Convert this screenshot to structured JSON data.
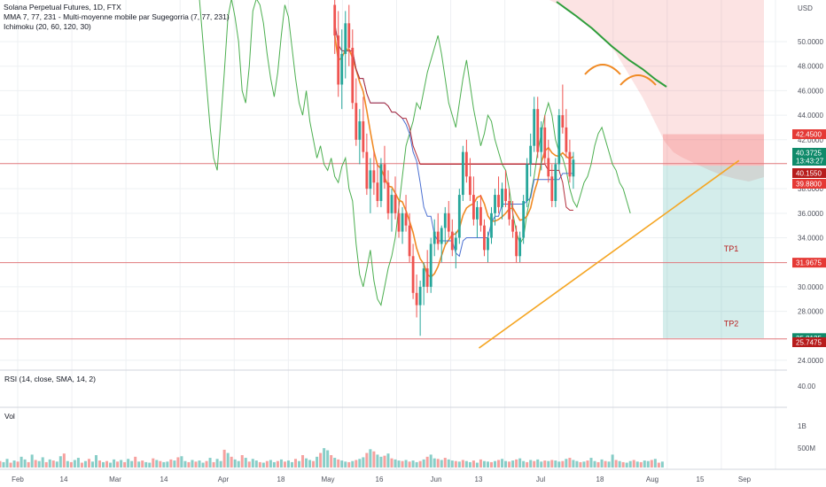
{
  "header": {
    "symbol_line": "Solana Perpetual Futures, 1D, FTX",
    "indicators": [
      "MMA 7, 77, 231 - Multi-moyenne mobile par Sugegorria (7, 77, 231)",
      "Ichimoku (20, 60, 120, 30)"
    ],
    "rsi_label": "RSI (14, close, SMA, 14, 2)",
    "vol_label": "Vol"
  },
  "colors": {
    "up": "#26a69a",
    "down": "#ef5350",
    "grid": "#eef0f3",
    "h_line": "#e0787c",
    "trendline": "#f5a623",
    "ma_orange": "#f08a24",
    "ma_green": "#2e9d3a",
    "ichimoku_conversion": "#4a6fd1",
    "ichimoku_base": "#b22d3a",
    "ichimoku_lagging": "#4caf50",
    "cloud_red": "rgba(239,83,80,0.16)",
    "tp_zone": "rgba(38,166,154,0.20)",
    "sl_zone": "rgba(239,83,80,0.26)",
    "axis_text": "#50535e",
    "label_red": "#e53935",
    "label_dark_red": "#b71c1c",
    "label_green": "#0f8a6a"
  },
  "chart_data": {
    "type": "candlestick",
    "currency_label": "USD",
    "price_axis_ticks": [
      "50.0000",
      "48.0000",
      "46.0000",
      "44.0000",
      "42.0000",
      "38.0000",
      "36.0000",
      "34.0000",
      "30.0000",
      "28.0000",
      "24.0000"
    ],
    "price_axis_tick_values": [
      50,
      48,
      46,
      44,
      42,
      38,
      36,
      34,
      30,
      28,
      24
    ],
    "price_range": [
      23.2,
      53.4
    ],
    "rsi_axis_ticks": [
      "40.00"
    ],
    "volume_axis_ticks": [
      "1B",
      "500M"
    ],
    "time_axis_labels": [
      "Feb",
      "14",
      "Mar",
      "14",
      "Apr",
      "18",
      "May",
      "16",
      "Jun",
      "13",
      "Jul",
      "18",
      "Aug",
      "15",
      "Sep"
    ],
    "price_labels": [
      {
        "text": "42.4500",
        "price": 42.45,
        "style": "red"
      },
      {
        "text": "40.3725",
        "price": 40.3725,
        "style": "green",
        "subtext": "13:43:27"
      },
      {
        "text": "40.1550",
        "price": 40.155,
        "style": "dark_red"
      },
      {
        "text": "39.8800",
        "price": 39.88,
        "style": "red"
      },
      {
        "text": "31.9675",
        "price": 31.9675,
        "style": "red"
      },
      {
        "text": "25.8125",
        "price": 25.8125,
        "style": "green"
      },
      {
        "text": "25.7475",
        "price": 25.7475,
        "style": "dark_red"
      }
    ],
    "horizontal_levels": [
      40.05,
      31.97,
      25.75
    ],
    "targets": [
      {
        "label": "TP1",
        "price": 32.6
      },
      {
        "label": "TP2",
        "price": 26.5
      }
    ],
    "trendline": {
      "from": {
        "date": "2022-06-13",
        "price": 25.0
      },
      "to": {
        "date": "2022-08-25",
        "price": 40.3
      }
    },
    "stop_zone_top": 42.45,
    "entry_price": 39.88,
    "take_profit_floor": 25.81,
    "date_range": [
      "2022-01-27",
      "2022-09-05"
    ],
    "candles_start": "2022-05-01",
    "candles": [
      [
        53.0,
        54.0,
        49.0,
        50.5
      ],
      [
        50.5,
        52.5,
        45.5,
        46.5
      ],
      [
        46.5,
        51.0,
        44.5,
        49.0
      ],
      [
        49.0,
        52.5,
        47.0,
        51.5
      ],
      [
        51.5,
        53.0,
        48.0,
        49.5
      ],
      [
        49.5,
        51.0,
        44.5,
        45.0
      ],
      [
        45.0,
        47.0,
        41.5,
        42.0
      ],
      [
        42.0,
        44.5,
        40.0,
        43.5
      ],
      [
        43.5,
        45.5,
        40.5,
        41.0
      ],
      [
        41.0,
        42.5,
        37.5,
        38.0
      ],
      [
        38.0,
        40.5,
        36.0,
        39.5
      ],
      [
        39.5,
        41.0,
        37.5,
        38.5
      ],
      [
        38.5,
        40.0,
        36.5,
        37.0
      ],
      [
        37.0,
        40.5,
        36.5,
        40.0
      ],
      [
        40.0,
        41.5,
        38.0,
        38.5
      ],
      [
        38.5,
        39.5,
        35.5,
        36.0
      ],
      [
        36.0,
        38.0,
        34.5,
        37.5
      ],
      [
        37.5,
        39.0,
        35.5,
        36.0
      ],
      [
        36.0,
        37.0,
        34.0,
        34.5
      ],
      [
        34.5,
        36.5,
        33.5,
        36.0
      ],
      [
        36.0,
        37.5,
        34.5,
        35.0
      ],
      [
        35.0,
        36.0,
        32.0,
        32.5
      ],
      [
        32.5,
        33.5,
        29.0,
        29.5
      ],
      [
        29.5,
        31.0,
        27.5,
        28.5
      ],
      [
        28.5,
        30.5,
        26.0,
        30.0
      ],
      [
        30.0,
        32.0,
        28.5,
        31.5
      ],
      [
        31.5,
        33.0,
        29.5,
        30.0
      ],
      [
        30.0,
        34.0,
        29.5,
        33.5
      ],
      [
        33.5,
        35.5,
        32.5,
        34.5
      ],
      [
        34.5,
        36.0,
        33.0,
        33.5
      ],
      [
        33.5,
        35.0,
        32.0,
        34.8
      ],
      [
        34.8,
        36.5,
        33.5,
        36.0
      ],
      [
        36.0,
        37.0,
        34.0,
        34.5
      ],
      [
        34.5,
        35.5,
        32.5,
        33.0
      ],
      [
        33.0,
        34.5,
        31.5,
        34.0
      ],
      [
        34.0,
        38.0,
        33.5,
        37.5
      ],
      [
        37.5,
        41.5,
        37.0,
        41.0
      ],
      [
        41.0,
        42.0,
        38.5,
        39.0
      ],
      [
        39.0,
        40.5,
        37.0,
        37.5
      ],
      [
        37.5,
        39.0,
        35.0,
        35.5
      ],
      [
        35.5,
        37.0,
        34.0,
        36.5
      ],
      [
        36.5,
        37.5,
        34.5,
        35.0
      ],
      [
        35.0,
        35.5,
        32.5,
        33.0
      ],
      [
        33.0,
        34.5,
        32.0,
        34.0
      ],
      [
        34.0,
        36.5,
        33.5,
        36.0
      ],
      [
        36.0,
        38.0,
        35.0,
        37.5
      ],
      [
        37.5,
        39.0,
        36.0,
        36.5
      ],
      [
        36.5,
        38.5,
        35.5,
        38.0
      ],
      [
        38.0,
        39.5,
        36.5,
        37.0
      ],
      [
        37.0,
        38.0,
        35.0,
        35.5
      ],
      [
        35.5,
        37.0,
        34.0,
        34.5
      ],
      [
        34.5,
        35.0,
        32.0,
        32.5
      ],
      [
        32.5,
        34.5,
        32.0,
        34.0
      ],
      [
        34.0,
        37.5,
        33.5,
        37.0
      ],
      [
        37.0,
        40.5,
        36.5,
        40.0
      ],
      [
        40.0,
        42.5,
        39.0,
        41.5
      ],
      [
        41.5,
        45.5,
        41.0,
        44.5
      ],
      [
        44.5,
        45.5,
        40.5,
        41.0
      ],
      [
        41.0,
        43.5,
        39.5,
        43.0
      ],
      [
        43.0,
        44.0,
        40.0,
        40.5
      ],
      [
        40.5,
        42.0,
        38.5,
        39.0
      ],
      [
        39.0,
        40.0,
        36.5,
        37.0
      ],
      [
        37.0,
        40.5,
        36.5,
        40.0
      ],
      [
        40.0,
        44.5,
        39.5,
        44.0
      ],
      [
        44.0,
        46.5,
        42.5,
        43.0
      ],
      [
        43.0,
        44.5,
        40.5,
        41.0
      ],
      [
        41.0,
        42.0,
        38.5,
        39.0
      ],
      [
        39.0,
        41.0,
        38.0,
        40.3725
      ]
    ],
    "volumes_start": "2022-01-27",
    "volumes": [
      0.12,
      0.1,
      0.16,
      0.09,
      0.13,
      0.11,
      0.2,
      0.15,
      0.1,
      0.24,
      0.14,
      0.12,
      0.19,
      0.1,
      0.15,
      0.13,
      0.11,
      0.21,
      0.26,
      0.12,
      0.1,
      0.14,
      0.18,
      0.09,
      0.12,
      0.16,
      0.11,
      0.23,
      0.13,
      0.1,
      0.12,
      0.09,
      0.15,
      0.11,
      0.14,
      0.1,
      0.16,
      0.12,
      0.2,
      0.11,
      0.13,
      0.1,
      0.09,
      0.17,
      0.14,
      0.12,
      0.1,
      0.11,
      0.15,
      0.13,
      0.19,
      0.21,
      0.12,
      0.1,
      0.14,
      0.11,
      0.13,
      0.09,
      0.12,
      0.18,
      0.1,
      0.16,
      0.12,
      0.33,
      0.27,
      0.2,
      0.15,
      0.12,
      0.23,
      0.18,
      0.11,
      0.16,
      0.13,
      0.1,
      0.09,
      0.12,
      0.14,
      0.1,
      0.12,
      0.15,
      0.11,
      0.13,
      0.1,
      0.16,
      0.12,
      0.23,
      0.17,
      0.14,
      0.12,
      0.2,
      0.27,
      0.36,
      0.32,
      0.23,
      0.18,
      0.15,
      0.13,
      0.11,
      0.1,
      0.12,
      0.14,
      0.16,
      0.19,
      0.27,
      0.34,
      0.3,
      0.24,
      0.2,
      0.22,
      0.26,
      0.17,
      0.15,
      0.13,
      0.12,
      0.14,
      0.11,
      0.13,
      0.1,
      0.12,
      0.15,
      0.2,
      0.24,
      0.17,
      0.16,
      0.14,
      0.18,
      0.15,
      0.13,
      0.12,
      0.11,
      0.14,
      0.12,
      0.1,
      0.13,
      0.09,
      0.15,
      0.12,
      0.11,
      0.1,
      0.12,
      0.14,
      0.16,
      0.12,
      0.11,
      0.13,
      0.15,
      0.17,
      0.12,
      0.1,
      0.14,
      0.12,
      0.15,
      0.11,
      0.13,
      0.12,
      0.14,
      0.13,
      0.11,
      0.12,
      0.16,
      0.18,
      0.14,
      0.12,
      0.1,
      0.11,
      0.13,
      0.18,
      0.12,
      0.1,
      0.15,
      0.12,
      0.11,
      0.24,
      0.14,
      0.12,
      0.1,
      0.09,
      0.12,
      0.14,
      0.11,
      0.1,
      0.13,
      0.12,
      0.14,
      0.16,
      0.09,
      0.11
    ],
    "lagging_span": {
      "start": "2022-03-24",
      "values": [
        53.5,
        50.0,
        46.5,
        43.0,
        40.5,
        39.5,
        43.5,
        47.5,
        52.0,
        53.5,
        52.0,
        50.0,
        46.0,
        45.0,
        48.0,
        52.5,
        53.5,
        53.0,
        51.5,
        49.0,
        47.0,
        45.5,
        47.5,
        50.5,
        53.0,
        52.0,
        49.5,
        47.0,
        45.0,
        44.0,
        46.0,
        43.5,
        42.0,
        40.5,
        41.5,
        40.0,
        39.5,
        40.5,
        39.0,
        38.5,
        39.8,
        40.5,
        38.0,
        37.0,
        33.5,
        31.0,
        30.0,
        31.5,
        33.0,
        30.5,
        29.0,
        28.5,
        30.0,
        31.5,
        32.5,
        34.0,
        36.5,
        39.0,
        41.5,
        42.5,
        43.5,
        45.0,
        44.5,
        46.0,
        47.5,
        48.5,
        49.5,
        50.5,
        49.0,
        47.0,
        45.0,
        44.0,
        43.0,
        45.0,
        47.0,
        48.5,
        46.5,
        44.5,
        43.0,
        41.5,
        42.5,
        44.0,
        43.5,
        42.0,
        41.0,
        40.0,
        39.5,
        38.0,
        36.0,
        34.5,
        33.5,
        34.0,
        36.0,
        37.5,
        39.0,
        41.0,
        42.5,
        44.0,
        45.0,
        44.0,
        42.0,
        41.0,
        40.5,
        39.5,
        38.0,
        37.0,
        36.5,
        37.5,
        38.5,
        39.0,
        40.0,
        41.5,
        42.5,
        43.0,
        42.0,
        41.0,
        40.0,
        39.5,
        38.5,
        38.0,
        37.0,
        36.0
      ]
    }
  }
}
